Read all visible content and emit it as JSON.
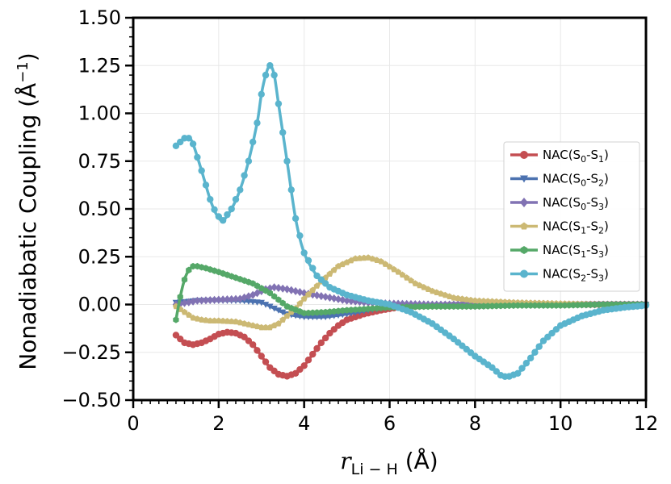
{
  "chart_data": {
    "type": "line",
    "ylabel": {
      "main": "Nonadiabatic Coupling (",
      "unit": "Å",
      "exp": "−1",
      "close": ")"
    },
    "xlabel": {
      "var": "r",
      "sub": "Li − H",
      "unit": " (Å)"
    },
    "xlim": [
      0,
      12
    ],
    "ylim": [
      -0.5,
      1.5
    ],
    "xticks": [
      0,
      2,
      4,
      6,
      8,
      10,
      12
    ],
    "xtick_labels": [
      "0",
      "2",
      "4",
      "6",
      "8",
      "10",
      "12"
    ],
    "yticks": [
      -0.5,
      -0.25,
      0,
      0.25,
      0.5,
      0.75,
      1.0,
      1.25,
      1.5
    ],
    "ytick_labels": [
      "−0.50",
      "−0.25",
      "0.00",
      "0.25",
      "0.50",
      "0.75",
      "1.00",
      "1.25",
      "1.50"
    ],
    "grid": true,
    "legend_position": "center-right",
    "series": [
      {
        "key": "s01",
        "legend": {
          "pre": "NAC(S",
          "a": "0",
          "mid": "-S",
          "b": "1",
          "post": ")"
        },
        "color": "#c44e52",
        "marker": "circle",
        "x": [
          1.0,
          1.2,
          1.4,
          1.6,
          1.8,
          2.0,
          2.2,
          2.4,
          2.6,
          2.8,
          3.0,
          3.2,
          3.4,
          3.6,
          3.8,
          4.0,
          4.2,
          4.4,
          4.6,
          4.8,
          5.0,
          5.4,
          5.8,
          6.2,
          7.0,
          8.0,
          9.0,
          10.0,
          11.0,
          12.0
        ],
        "y": [
          -0.16,
          -0.2,
          -0.21,
          -0.2,
          -0.18,
          -0.155,
          -0.145,
          -0.15,
          -0.17,
          -0.21,
          -0.27,
          -0.33,
          -0.365,
          -0.375,
          -0.36,
          -0.32,
          -0.26,
          -0.2,
          -0.15,
          -0.11,
          -0.08,
          -0.05,
          -0.03,
          -0.015,
          -0.005,
          0.0,
          0.0,
          0.0,
          0.0,
          0.0
        ]
      },
      {
        "key": "s02",
        "legend": {
          "pre": "NAC(S",
          "a": "0",
          "mid": "-S",
          "b": "2",
          "post": ")"
        },
        "color": "#4c72b0",
        "marker": "triangle-down",
        "x": [
          1.0,
          1.5,
          2.0,
          2.5,
          3.0,
          3.3,
          3.6,
          4.0,
          4.5,
          5.0,
          5.5,
          6.0,
          7.0,
          8.0,
          9.0,
          10.0,
          11.0,
          12.0
        ],
        "y": [
          0.01,
          0.02,
          0.02,
          0.02,
          0.01,
          -0.02,
          -0.05,
          -0.065,
          -0.065,
          -0.05,
          -0.03,
          -0.015,
          -0.005,
          0.0,
          0.0,
          0.0,
          0.0,
          0.0
        ]
      },
      {
        "key": "s03",
        "legend": {
          "pre": "NAC(S",
          "a": "0",
          "mid": "-S",
          "b": "3",
          "post": ")"
        },
        "color": "#8172b3",
        "marker": "diamond",
        "x": [
          1.0,
          1.5,
          2.0,
          2.5,
          2.8,
          3.1,
          3.3,
          3.6,
          4.0,
          4.5,
          5.0,
          5.5,
          6.0,
          7.0,
          8.0,
          9.0,
          10.0,
          11.0,
          12.0
        ],
        "y": [
          0.0,
          0.02,
          0.025,
          0.03,
          0.05,
          0.08,
          0.09,
          0.08,
          0.06,
          0.04,
          0.02,
          0.01,
          0.005,
          0.0,
          0.0,
          0.0,
          0.0,
          0.0,
          0.0
        ]
      },
      {
        "key": "s12",
        "legend": {
          "pre": "NAC(S",
          "a": "1",
          "mid": "-S",
          "b": "2",
          "post": ")"
        },
        "color": "#ccb974",
        "marker": "pentagon",
        "x": [
          1.0,
          1.2,
          1.4,
          1.6,
          1.8,
          2.0,
          2.4,
          2.8,
          3.0,
          3.2,
          3.4,
          3.6,
          3.8,
          4.0,
          4.4,
          4.8,
          5.2,
          5.5,
          5.8,
          6.2,
          6.6,
          7.0,
          7.5,
          8.0,
          9.0,
          10.0,
          11.0,
          12.0
        ],
        "y": [
          -0.01,
          -0.04,
          -0.07,
          -0.08,
          -0.085,
          -0.085,
          -0.09,
          -0.11,
          -0.12,
          -0.12,
          -0.1,
          -0.06,
          -0.02,
          0.03,
          0.12,
          0.2,
          0.24,
          0.245,
          0.225,
          0.17,
          0.11,
          0.07,
          0.035,
          0.02,
          0.01,
          0.005,
          0.0,
          0.0
        ]
      },
      {
        "key": "s13",
        "legend": {
          "pre": "NAC(S",
          "a": "1",
          "mid": "-S",
          "b": "3",
          "post": ")"
        },
        "color": "#55a868",
        "marker": "hexagon",
        "x": [
          1.0,
          1.1,
          1.2,
          1.3,
          1.4,
          1.5,
          1.7,
          2.0,
          2.4,
          2.8,
          3.2,
          3.6,
          4.0,
          4.5,
          5.0,
          6.0,
          7.0,
          8.0,
          9.0,
          10.0,
          11.0,
          12.0
        ],
        "y": [
          -0.08,
          0.04,
          0.13,
          0.18,
          0.2,
          0.2,
          0.19,
          0.17,
          0.14,
          0.11,
          0.06,
          -0.01,
          -0.045,
          -0.04,
          -0.03,
          -0.015,
          -0.01,
          -0.01,
          -0.005,
          -0.005,
          0.0,
          0.0
        ]
      },
      {
        "key": "s23",
        "legend": {
          "pre": "NAC(S",
          "a": "2",
          "mid": "-S",
          "b": "3",
          "post": ")"
        },
        "color": "#5ab4cd",
        "marker": "circle",
        "x": [
          1.0,
          1.1,
          1.2,
          1.3,
          1.4,
          1.6,
          1.8,
          1.95,
          2.1,
          2.3,
          2.5,
          2.7,
          2.9,
          3.0,
          3.1,
          3.2,
          3.3,
          3.4,
          3.6,
          3.8,
          4.0,
          4.3,
          4.6,
          5.0,
          5.5,
          6.0,
          6.5,
          7.0,
          7.5,
          8.0,
          8.4,
          8.6,
          8.75,
          9.0,
          9.3,
          9.6,
          10.0,
          10.5,
          11.0,
          11.5,
          12.0
        ],
        "y": [
          0.83,
          0.85,
          0.87,
          0.87,
          0.84,
          0.7,
          0.55,
          0.47,
          0.44,
          0.5,
          0.6,
          0.75,
          0.95,
          1.1,
          1.2,
          1.25,
          1.2,
          1.05,
          0.75,
          0.45,
          0.27,
          0.15,
          0.09,
          0.05,
          0.02,
          0.0,
          -0.04,
          -0.1,
          -0.18,
          -0.27,
          -0.33,
          -0.37,
          -0.38,
          -0.36,
          -0.28,
          -0.19,
          -0.11,
          -0.06,
          -0.03,
          -0.015,
          -0.005
        ]
      }
    ]
  }
}
